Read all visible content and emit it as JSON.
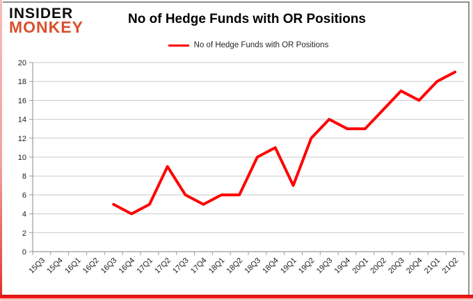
{
  "logo": {
    "line1": "INSIDER",
    "line2": "MONKEY"
  },
  "header": {
    "title": "No of Hedge Funds with OR Positions"
  },
  "legend": {
    "label": "No of Hedge Funds with OR Positions",
    "line_color": "#ff0000"
  },
  "colors": {
    "series_red": "#ff0000",
    "logo_red": "#d9502c",
    "gridline": "#c9c9c9",
    "axis": "#9b9b9b",
    "tick_label": "#1a1a1a",
    "frame_gray": "#8f8f8f",
    "page_border_red": "#ff1a1a",
    "page_border_pink": "#f0a19d"
  },
  "chart_data": {
    "type": "line",
    "title": "No of Hedge Funds with OR Positions",
    "xlabel": "",
    "ylabel": "",
    "ylim": [
      0,
      20
    ],
    "ytick_step": 2,
    "grid": "horizontal",
    "legend_position": "top-center",
    "categories": [
      "15Q3",
      "15Q4",
      "16Q1",
      "16Q2",
      "16Q3",
      "16Q4",
      "17Q1",
      "17Q2",
      "17Q3",
      "17Q4",
      "18Q1",
      "18Q2",
      "18Q3",
      "18Q4",
      "19Q1",
      "19Q2",
      "19Q3",
      "19Q4",
      "20Q1",
      "20Q2",
      "20Q3",
      "20Q4",
      "21Q1",
      "21Q2"
    ],
    "series": [
      {
        "name": "No of Hedge Funds with OR Positions",
        "color": "#ff0000",
        "values": [
          null,
          null,
          null,
          null,
          5,
          4,
          5,
          9,
          6,
          5,
          6,
          6,
          10,
          11,
          7,
          12,
          14,
          13,
          13,
          15,
          17,
          16,
          18,
          19
        ]
      }
    ]
  }
}
